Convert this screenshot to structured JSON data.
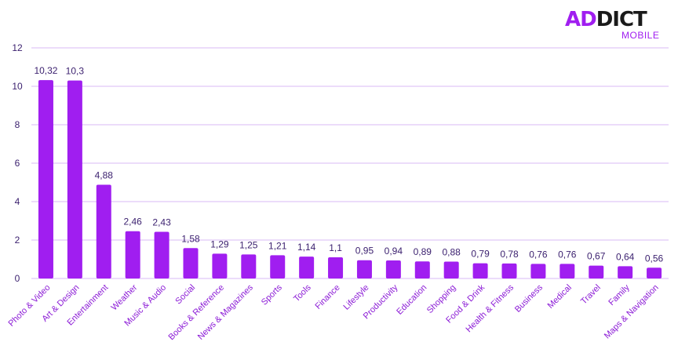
{
  "brand": {
    "logo_prefix": "AD",
    "logo_suffix": "DICT",
    "logo_sub": "MOBILE",
    "accent": "#a01ef0"
  },
  "chart_data": {
    "type": "bar",
    "title": "",
    "xlabel": "",
    "ylabel": "",
    "ylim": [
      0,
      12
    ],
    "yticks": [
      "0",
      "2",
      "4",
      "6",
      "8",
      "10",
      "12"
    ],
    "grid": true,
    "bar_color": "#a01ef0",
    "categories": [
      "Photo & Video",
      "Art & Design",
      "Entertainment",
      "Weather",
      "Music & Audio",
      "Social",
      "Books & Reference",
      "News & Magazines",
      "Sports",
      "Tools",
      "Finance",
      "Lifestyle",
      "Productivity",
      "Education",
      "Shopping",
      "Food & Drink",
      "Health & Fitness",
      "Business",
      "Medical",
      "Travel",
      "Family",
      "Maps & Navigation"
    ],
    "values": [
      10.32,
      10.3,
      4.88,
      2.46,
      2.43,
      1.58,
      1.29,
      1.25,
      1.21,
      1.14,
      1.1,
      0.95,
      0.94,
      0.89,
      0.88,
      0.79,
      0.78,
      0.76,
      0.76,
      0.67,
      0.64,
      0.56
    ],
    "value_labels": [
      "10,32",
      "10,3",
      "4,88",
      "2,46",
      "2,43",
      "1,58",
      "1,29",
      "1,25",
      "1,21",
      "1,14",
      "1,1",
      "0,95",
      "0,94",
      "0,89",
      "0,88",
      "0,79",
      "0,78",
      "0,76",
      "0,76",
      "0,67",
      "0,64",
      "0,56"
    ]
  }
}
